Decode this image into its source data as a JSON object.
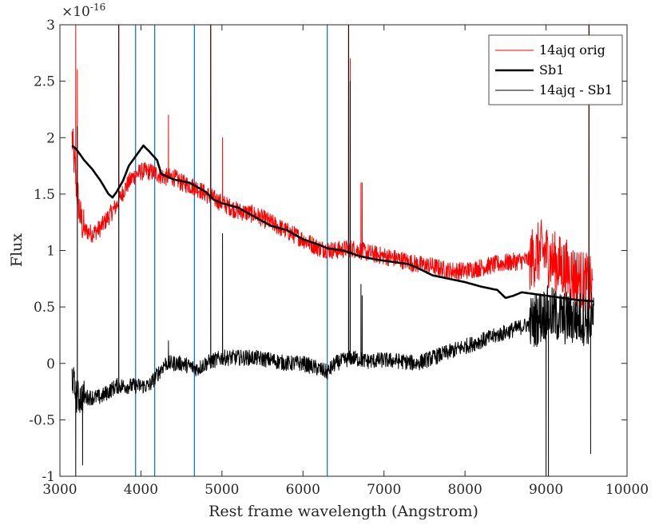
{
  "chart_data": {
    "type": "line",
    "xlabel": "Rest frame wavelength (Angstrom)",
    "ylabel": "Flux",
    "xlim": [
      3000,
      10000
    ],
    "ylim": [
      -1,
      3
    ],
    "xticks": [
      3000,
      4000,
      5000,
      6000,
      7000,
      8000,
      9000,
      10000
    ],
    "xtick_labels": [
      "3000",
      "4000",
      "5000",
      "6000",
      "7000",
      "8000",
      "9000",
      "10000"
    ],
    "yticks": [
      -1,
      -0.5,
      0,
      0.5,
      1,
      1.5,
      2,
      2.5,
      3
    ],
    "ytick_labels": [
      "-1",
      "-0.5",
      "0",
      "0.5",
      "1",
      "1.5",
      "2",
      "2.5",
      "3"
    ],
    "y_exponent": {
      "base": "×10",
      "power": "-16"
    },
    "grid": false,
    "legend_position": "top-right",
    "vertical_lines": {
      "color": "#0072bd",
      "x": [
        3934,
        4170,
        4660,
        6300
      ]
    },
    "series": [
      {
        "name": "14ajq orig",
        "color": "#ff0000",
        "width": 1,
        "noise": 0.08,
        "anchors": [
          [
            3150,
            2.0
          ],
          [
            3200,
            1.6
          ],
          [
            3250,
            1.3
          ],
          [
            3300,
            1.18
          ],
          [
            3400,
            1.15
          ],
          [
            3500,
            1.2
          ],
          [
            3600,
            1.3
          ],
          [
            3700,
            1.4
          ],
          [
            3800,
            1.55
          ],
          [
            3900,
            1.65
          ],
          [
            4000,
            1.7
          ],
          [
            4100,
            1.7
          ],
          [
            4200,
            1.68
          ],
          [
            4300,
            1.65
          ],
          [
            4400,
            1.65
          ],
          [
            4500,
            1.6
          ],
          [
            4600,
            1.58
          ],
          [
            4700,
            1.55
          ],
          [
            4800,
            1.5
          ],
          [
            5000,
            1.42
          ],
          [
            5200,
            1.35
          ],
          [
            5400,
            1.32
          ],
          [
            5600,
            1.25
          ],
          [
            5800,
            1.17
          ],
          [
            6000,
            1.1
          ],
          [
            6200,
            1.02
          ],
          [
            6400,
            1.0
          ],
          [
            6600,
            1.02
          ],
          [
            6800,
            0.98
          ],
          [
            7000,
            0.95
          ],
          [
            7200,
            0.92
          ],
          [
            7400,
            0.88
          ],
          [
            7600,
            0.86
          ],
          [
            7800,
            0.82
          ],
          [
            8000,
            0.82
          ],
          [
            8200,
            0.85
          ],
          [
            8400,
            0.88
          ],
          [
            8600,
            0.9
          ],
          [
            8800,
            0.92
          ],
          [
            8950,
            1.0
          ],
          [
            9100,
            0.9
          ],
          [
            9300,
            0.8
          ],
          [
            9500,
            0.7
          ],
          [
            9580,
            0.65
          ]
        ],
        "spikes": [
          [
            3195,
            3.0
          ],
          [
            3215,
            2.6
          ],
          [
            3727,
            3.0
          ],
          [
            4340,
            2.2
          ],
          [
            4861,
            3.0
          ],
          [
            5007,
            2.0
          ],
          [
            6563,
            3.0
          ],
          [
            6583,
            2.7
          ],
          [
            6716,
            1.6
          ],
          [
            6731,
            1.6
          ],
          [
            9530,
            3.0
          ]
        ]
      },
      {
        "name": "Sb1",
        "color": "#000000",
        "width": 2.6,
        "noise": 0.0,
        "anchors": [
          [
            3150,
            1.93
          ],
          [
            3200,
            1.9
          ],
          [
            3300,
            1.8
          ],
          [
            3400,
            1.72
          ],
          [
            3500,
            1.62
          ],
          [
            3600,
            1.5
          ],
          [
            3650,
            1.47
          ],
          [
            3700,
            1.52
          ],
          [
            3780,
            1.62
          ],
          [
            3850,
            1.75
          ],
          [
            3950,
            1.85
          ],
          [
            4030,
            1.93
          ],
          [
            4100,
            1.88
          ],
          [
            4200,
            1.8
          ],
          [
            4250,
            1.68
          ],
          [
            4400,
            1.63
          ],
          [
            4600,
            1.6
          ],
          [
            4800,
            1.52
          ],
          [
            4900,
            1.45
          ],
          [
            5000,
            1.42
          ],
          [
            5200,
            1.38
          ],
          [
            5400,
            1.3
          ],
          [
            5600,
            1.22
          ],
          [
            5800,
            1.18
          ],
          [
            6000,
            1.1
          ],
          [
            6200,
            1.05
          ],
          [
            6300,
            1.02
          ],
          [
            6500,
            1.0
          ],
          [
            6700,
            0.95
          ],
          [
            6900,
            0.92
          ],
          [
            7100,
            0.9
          ],
          [
            7300,
            0.88
          ],
          [
            7400,
            0.85
          ],
          [
            7600,
            0.78
          ],
          [
            7800,
            0.75
          ],
          [
            8000,
            0.72
          ],
          [
            8200,
            0.68
          ],
          [
            8400,
            0.65
          ],
          [
            8500,
            0.58
          ],
          [
            8600,
            0.6
          ],
          [
            8700,
            0.63
          ],
          [
            8800,
            0.62
          ],
          [
            9000,
            0.6
          ],
          [
            9200,
            0.58
          ],
          [
            9400,
            0.56
          ],
          [
            9590,
            0.55
          ]
        ],
        "spikes": []
      },
      {
        "name": "14ajq - Sb1",
        "color": "#000000",
        "width": 1,
        "noise": 0.07,
        "anchors": [
          [
            3150,
            -0.1
          ],
          [
            3200,
            -0.3
          ],
          [
            3300,
            -0.3
          ],
          [
            3400,
            -0.3
          ],
          [
            3500,
            -0.3
          ],
          [
            3600,
            -0.25
          ],
          [
            3700,
            -0.2
          ],
          [
            3800,
            -0.2
          ],
          [
            3900,
            -0.2
          ],
          [
            4000,
            -0.2
          ],
          [
            4100,
            -0.2
          ],
          [
            4200,
            -0.1
          ],
          [
            4300,
            0.0
          ],
          [
            4500,
            0.0
          ],
          [
            4700,
            -0.05
          ],
          [
            4800,
            0.0
          ],
          [
            5000,
            0.05
          ],
          [
            5200,
            0.05
          ],
          [
            5400,
            0.05
          ],
          [
            5600,
            0.03
          ],
          [
            5800,
            0.0
          ],
          [
            6000,
            0.0
          ],
          [
            6200,
            -0.05
          ],
          [
            6300,
            -0.08
          ],
          [
            6400,
            0.0
          ],
          [
            6600,
            0.05
          ],
          [
            6800,
            0.02
          ],
          [
            7000,
            0.03
          ],
          [
            7200,
            0.02
          ],
          [
            7400,
            0.0
          ],
          [
            7600,
            0.05
          ],
          [
            7800,
            0.1
          ],
          [
            8000,
            0.15
          ],
          [
            8200,
            0.2
          ],
          [
            8400,
            0.25
          ],
          [
            8600,
            0.3
          ],
          [
            8800,
            0.35
          ],
          [
            9000,
            0.45
          ],
          [
            9200,
            0.4
          ],
          [
            9400,
            0.4
          ],
          [
            9590,
            0.4
          ]
        ],
        "spikes": [
          [
            3195,
            -1.0
          ],
          [
            3215,
            2.1
          ],
          [
            3280,
            -0.9
          ],
          [
            3727,
            3.0
          ],
          [
            4340,
            0.2
          ],
          [
            4861,
            3.0
          ],
          [
            5007,
            1.15
          ],
          [
            6563,
            3.0
          ],
          [
            6583,
            2.5
          ],
          [
            6716,
            0.7
          ],
          [
            6731,
            0.6
          ],
          [
            9000,
            -1.0
          ],
          [
            9030,
            -1.0
          ],
          [
            9530,
            3.0
          ],
          [
            9550,
            -0.8
          ]
        ]
      }
    ]
  }
}
